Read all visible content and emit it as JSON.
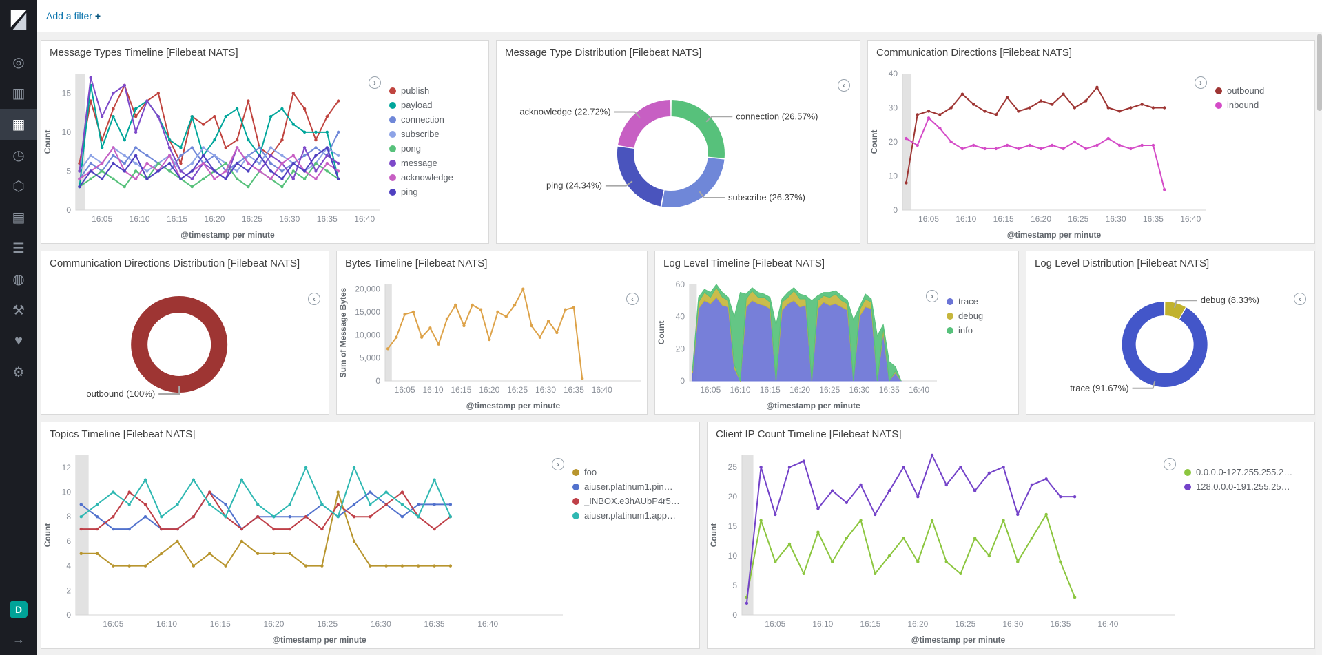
{
  "topbar": {
    "add_filter_label": "Add a filter",
    "plus_glyph": "+"
  },
  "ui": {
    "legend_toggle_open": "›",
    "legend_toggle_collapsed": "‹"
  },
  "sidebar": {
    "space_badge": "D",
    "collapse_glyph": "→",
    "items": [
      {
        "name": "discover",
        "glyph": "◎"
      },
      {
        "name": "visualize",
        "glyph": "▥"
      },
      {
        "name": "dashboard",
        "glyph": "▦",
        "active": true
      },
      {
        "name": "timelion",
        "glyph": "◷"
      },
      {
        "name": "machine-learning",
        "glyph": "⬡"
      },
      {
        "name": "infrastructure",
        "glyph": "▤"
      },
      {
        "name": "logs",
        "glyph": "☰"
      },
      {
        "name": "apm",
        "glyph": "◍"
      },
      {
        "name": "dev-tools",
        "glyph": "⚒"
      },
      {
        "name": "monitoring",
        "glyph": "♥"
      },
      {
        "name": "management",
        "glyph": "⚙"
      }
    ]
  },
  "chart_data": [
    {
      "id": "p1",
      "type": "line",
      "title": "Message Types Timeline [Filebeat NATS]",
      "xlabel": "@timestamp per minute",
      "ylabel": "Count",
      "xdomain": [
        1.5,
        42
      ],
      "ylim": [
        0,
        17.5
      ],
      "yticks": [
        0,
        5,
        10,
        15
      ],
      "xticks": [
        5,
        10,
        15,
        20,
        25,
        30,
        35,
        40
      ],
      "xtick_labels": [
        "16:05",
        "16:10",
        "16:15",
        "16:20",
        "16:25",
        "16:30",
        "16:35",
        "16:40"
      ],
      "partial_band": true,
      "markers": true,
      "legend_position": "right",
      "x": [
        2,
        3.5,
        5,
        6.5,
        8,
        9.5,
        11,
        12.5,
        14,
        15.5,
        17,
        18.5,
        20,
        21.5,
        23,
        24.5,
        26,
        27.5,
        29,
        30.5,
        32,
        33.5,
        35,
        36.5
      ],
      "series": [
        {
          "name": "publish",
          "color": "#c0443f",
          "values": [
            6,
            14,
            9,
            13,
            16,
            12,
            14,
            15,
            9,
            6,
            12,
            11,
            12,
            8,
            9,
            14,
            8,
            7,
            9,
            15,
            13,
            9,
            12,
            14
          ]
        },
        {
          "name": "payload",
          "color": "#00a69b",
          "values": [
            3,
            16,
            8,
            12,
            9,
            13,
            14,
            12,
            9,
            8,
            12,
            7,
            9,
            12,
            13,
            9,
            7,
            12,
            13,
            11,
            10,
            10,
            10,
            4
          ]
        },
        {
          "name": "connection",
          "color": "#6f87d8",
          "values": [
            4,
            6,
            5,
            7,
            6,
            8,
            7,
            6,
            5,
            7,
            8,
            6,
            7,
            5,
            6,
            7,
            8,
            6,
            5,
            6,
            7,
            8,
            7,
            10
          ]
        },
        {
          "name": "subscribe",
          "color": "#8da3e6",
          "values": [
            5,
            7,
            6,
            8,
            7,
            6,
            5,
            6,
            7,
            5,
            6,
            8,
            7,
            6,
            5,
            7,
            6,
            8,
            7,
            6,
            5,
            6,
            8,
            7
          ]
        },
        {
          "name": "pong",
          "color": "#57c17b",
          "values": [
            3,
            4,
            5,
            4,
            3,
            5,
            4,
            6,
            5,
            4,
            3,
            4,
            5,
            6,
            4,
            3,
            5,
            4,
            3,
            5,
            4,
            6,
            5,
            4
          ]
        },
        {
          "name": "message",
          "color": "#7d49c9",
          "values": [
            5,
            17,
            12,
            15,
            16,
            10,
            14,
            12,
            8,
            5,
            4,
            6,
            5,
            4,
            8,
            6,
            5,
            7,
            6,
            4,
            8,
            5,
            7,
            6
          ]
        },
        {
          "name": "acknowledge",
          "color": "#c75fc3",
          "values": [
            4,
            5,
            6,
            8,
            5,
            4,
            6,
            5,
            7,
            4,
            5,
            6,
            4,
            5,
            8,
            6,
            5,
            4,
            6,
            7,
            5,
            4,
            6,
            5
          ]
        },
        {
          "name": "ping",
          "color": "#4f40c0",
          "values": [
            3,
            5,
            4,
            6,
            5,
            7,
            4,
            5,
            6,
            4,
            5,
            7,
            5,
            4,
            6,
            5,
            7,
            5,
            4,
            6,
            5,
            7,
            8,
            4
          ]
        }
      ]
    },
    {
      "id": "p2",
      "type": "pie",
      "title": "Message Type Distribution [Filebeat NATS]",
      "radius": 66,
      "thickness": 24,
      "slices": [
        {
          "label": "connection",
          "pct": 26.57,
          "color": "#57c17b",
          "display": "connection (26.57%)"
        },
        {
          "label": "subscribe",
          "pct": 26.37,
          "color": "#6f87d8",
          "display": "subscribe (26.37%)"
        },
        {
          "label": "ping",
          "pct": 24.34,
          "color": "#4a54bd",
          "display": "ping (24.34%)"
        },
        {
          "label": "acknowledge",
          "pct": 22.72,
          "color": "#c75fc3",
          "display": "acknowledge (22.72%)"
        }
      ]
    },
    {
      "id": "p3",
      "type": "line",
      "title": "Communication Directions [Filebeat NATS]",
      "xlabel": "@timestamp per minute",
      "ylabel": "Count",
      "xdomain": [
        1.5,
        42
      ],
      "ylim": [
        0,
        40
      ],
      "yticks": [
        0,
        10,
        20,
        30,
        40
      ],
      "xticks": [
        5,
        10,
        15,
        20,
        25,
        30,
        35,
        40
      ],
      "xtick_labels": [
        "16:05",
        "16:10",
        "16:15",
        "16:20",
        "16:25",
        "16:30",
        "16:35",
        "16:40"
      ],
      "partial_band": true,
      "markers": true,
      "legend_position": "right",
      "x": [
        2,
        3.5,
        5,
        6.5,
        8,
        9.5,
        11,
        12.5,
        14,
        15.5,
        17,
        18.5,
        20,
        21.5,
        23,
        24.5,
        26,
        27.5,
        29,
        30.5,
        32,
        33.5,
        35,
        36.5
      ],
      "series": [
        {
          "name": "outbound",
          "color": "#9e3533",
          "values": [
            8,
            28,
            29,
            28,
            30,
            34,
            31,
            29,
            28,
            33,
            29,
            30,
            32,
            31,
            34,
            30,
            32,
            36,
            30,
            29,
            30,
            31,
            30,
            30
          ]
        },
        {
          "name": "inbound",
          "color": "#d44bc7",
          "values": [
            21,
            19,
            27,
            24,
            20,
            18,
            19,
            18,
            18,
            19,
            18,
            19,
            18,
            19,
            18,
            20,
            18,
            19,
            21,
            19,
            18,
            19,
            19,
            6
          ]
        }
      ]
    },
    {
      "id": "p4",
      "type": "pie",
      "title": "Communication Directions Distribution [Filebeat NATS]",
      "radius": 58,
      "thickness": 24,
      "slices": [
        {
          "label": "outbound",
          "pct": 100,
          "color": "#9e3533",
          "display": "outbound (100%)"
        }
      ]
    },
    {
      "id": "p5",
      "type": "line",
      "title": "Bytes Timeline [Filebeat NATS]",
      "xlabel": "@timestamp per minute",
      "ylabel": "Sum of Message Bytes",
      "xdomain": [
        1.5,
        47
      ],
      "ylim": [
        0,
        21000
      ],
      "yticks": [
        0,
        5000,
        10000,
        15000,
        20000
      ],
      "xticks": [
        5,
        10,
        15,
        20,
        25,
        30,
        35,
        40
      ],
      "xtick_labels": [
        "16:05",
        "16:10",
        "16:15",
        "16:20",
        "16:25",
        "16:30",
        "16:35",
        "16:40"
      ],
      "partial_band": true,
      "markers": true,
      "mleft": 70,
      "x": [
        2,
        3.5,
        5,
        6.5,
        8,
        9.5,
        11,
        12.5,
        14,
        15.5,
        17,
        18.5,
        20,
        21.5,
        23,
        24.5,
        26,
        27.5,
        29,
        30.5,
        32,
        33.5,
        35,
        36.5
      ],
      "series": [
        {
          "name": "Sum of Message Bytes",
          "color": "#dda248",
          "values": [
            7000,
            9500,
            14500,
            15000,
            9500,
            11500,
            8000,
            13500,
            16500,
            12000,
            16500,
            15500,
            9000,
            15000,
            14000,
            16500,
            20000,
            12000,
            9500,
            13000,
            10500,
            15500,
            16000,
            500
          ]
        }
      ]
    },
    {
      "id": "p6",
      "type": "area",
      "stacked": true,
      "title": "Log Level Timeline [Filebeat NATS]",
      "xlabel": "@timestamp per minute",
      "ylabel": "Count",
      "xdomain": [
        1.5,
        43
      ],
      "ylim": [
        0,
        60
      ],
      "yticks": [
        0,
        20,
        40,
        60
      ],
      "xticks": [
        5,
        10,
        15,
        20,
        25,
        30,
        35,
        40
      ],
      "xtick_labels": [
        "16:05",
        "16:10",
        "16:15",
        "16:20",
        "16:25",
        "16:30",
        "16:35",
        "16:40"
      ],
      "partial_band": true,
      "legend_position": "right",
      "x": [
        2,
        3,
        4,
        5,
        6,
        7,
        8,
        9,
        10,
        11,
        12,
        13,
        14,
        15,
        16,
        17,
        18,
        19,
        20,
        21,
        22,
        23,
        24,
        25,
        26,
        27,
        28,
        29,
        30,
        31,
        32,
        33,
        34,
        35,
        36,
        37
      ],
      "series": [
        {
          "name": "trace",
          "color": "#6b74d6",
          "values": [
            5,
            45,
            50,
            48,
            52,
            47,
            46,
            8,
            0,
            46,
            50,
            48,
            47,
            45,
            0,
            44,
            48,
            50,
            46,
            47,
            0,
            45,
            49,
            47,
            48,
            46,
            44,
            0,
            40,
            46,
            45,
            0,
            30,
            0,
            5,
            0
          ]
        },
        {
          "name": "debug",
          "color": "#c6b63d",
          "values": [
            1,
            4,
            5,
            4,
            6,
            5,
            4,
            2,
            0,
            5,
            6,
            4,
            5,
            4,
            0,
            5,
            4,
            6,
            5,
            4,
            0,
            5,
            4,
            5,
            6,
            4,
            4,
            0,
            4,
            5,
            4,
            0,
            3,
            0,
            1,
            0
          ]
        },
        {
          "name": "info",
          "color": "#57c17b",
          "values": [
            2,
            3,
            2,
            3,
            2,
            3,
            2,
            30,
            55,
            3,
            2,
            3,
            2,
            3,
            35,
            2,
            3,
            2,
            3,
            2,
            50,
            3,
            2,
            3,
            2,
            3,
            2,
            38,
            2,
            3,
            2,
            28,
            2,
            12,
            3,
            0
          ]
        }
      ]
    },
    {
      "id": "p7",
      "type": "pie",
      "title": "Log Level Distribution [Filebeat NATS]",
      "radius": 52,
      "thickness": 20,
      "slices": [
        {
          "label": "debug",
          "pct": 8.33,
          "color": "#c1b22f",
          "display": "debug (8.33%)"
        },
        {
          "label": "trace",
          "pct": 91.67,
          "color": "#4356c9",
          "display": "trace (91.67%)"
        }
      ]
    },
    {
      "id": "p8",
      "type": "line",
      "title": "Topics Timeline [Filebeat NATS]",
      "xlabel": "@timestamp per minute",
      "ylabel": "Count",
      "xdomain": [
        1.5,
        47
      ],
      "ylim": [
        0,
        13
      ],
      "yticks": [
        0,
        2,
        4,
        6,
        8,
        10,
        12
      ],
      "xticks": [
        5,
        10,
        15,
        20,
        25,
        30,
        35,
        40
      ],
      "xtick_labels": [
        "16:05",
        "16:10",
        "16:15",
        "16:20",
        "16:25",
        "16:30",
        "16:35",
        "16:40"
      ],
      "partial_band": true,
      "markers": true,
      "legend_position": "right",
      "x": [
        2,
        3.5,
        5,
        6.5,
        8,
        9.5,
        11,
        12.5,
        14,
        15.5,
        17,
        18.5,
        20,
        21.5,
        23,
        24.5,
        26,
        27.5,
        29,
        30.5,
        32,
        33.5,
        35,
        36.5
      ],
      "series": [
        {
          "name": "foo",
          "color": "#b8952e",
          "values": [
            5,
            5,
            4,
            4,
            4,
            5,
            6,
            4,
            5,
            4,
            6,
            5,
            5,
            5,
            4,
            4,
            10,
            6,
            4,
            4,
            4,
            4,
            4,
            4
          ]
        },
        {
          "name": "aiuser.platinum1.pin…",
          "color": "#5272cd",
          "values": [
            9,
            8,
            7,
            7,
            8,
            7,
            7,
            8,
            10,
            9,
            7,
            8,
            8,
            8,
            8,
            9,
            8,
            9,
            10,
            9,
            8,
            9,
            9,
            9
          ]
        },
        {
          "name": "_INBOX.e3hAUbP4r5…",
          "color": "#bf4048",
          "values": [
            7,
            7,
            8,
            10,
            9,
            7,
            7,
            8,
            10,
            8,
            7,
            8,
            7,
            7,
            8,
            7,
            9,
            8,
            8,
            9,
            10,
            8,
            7,
            8
          ]
        },
        {
          "name": "aiuser.platinum1.app…",
          "color": "#2fb8b2",
          "values": [
            8,
            9,
            10,
            9,
            11,
            8,
            9,
            11,
            9,
            8,
            11,
            9,
            8,
            9,
            12,
            9,
            8,
            12,
            9,
            10,
            9,
            8,
            11,
            8
          ]
        }
      ]
    },
    {
      "id": "p9",
      "type": "line",
      "title": "Client IP Count Timeline [Filebeat NATS]",
      "xlabel": "@timestamp per minute",
      "ylabel": "Count",
      "xdomain": [
        1.5,
        47
      ],
      "ylim": [
        0,
        27
      ],
      "yticks": [
        0,
        5,
        10,
        15,
        20,
        25
      ],
      "xticks": [
        5,
        10,
        15,
        20,
        25,
        30,
        35,
        40
      ],
      "xtick_labels": [
        "16:05",
        "16:10",
        "16:15",
        "16:20",
        "16:25",
        "16:30",
        "16:35",
        "16:40"
      ],
      "partial_band": true,
      "markers": true,
      "legend_position": "right",
      "x": [
        2,
        3.5,
        5,
        6.5,
        8,
        9.5,
        11,
        12.5,
        14,
        15.5,
        17,
        18.5,
        20,
        21.5,
        23,
        24.5,
        26,
        27.5,
        29,
        30.5,
        32,
        33.5,
        35,
        36.5
      ],
      "series": [
        {
          "name": "0.0.0.0-127.255.255.2…",
          "color": "#8cc63f",
          "values": [
            3,
            16,
            9,
            12,
            7,
            14,
            9,
            13,
            16,
            7,
            10,
            13,
            9,
            16,
            9,
            7,
            13,
            10,
            16,
            9,
            13,
            17,
            9,
            3
          ]
        },
        {
          "name": "128.0.0.0-191.255.25…",
          "color": "#7443c9",
          "values": [
            2,
            25,
            17,
            25,
            26,
            18,
            21,
            19,
            22,
            17,
            21,
            25,
            20,
            27,
            22,
            25,
            21,
            24,
            25,
            17,
            22,
            23,
            20,
            20
          ]
        }
      ]
    }
  ]
}
